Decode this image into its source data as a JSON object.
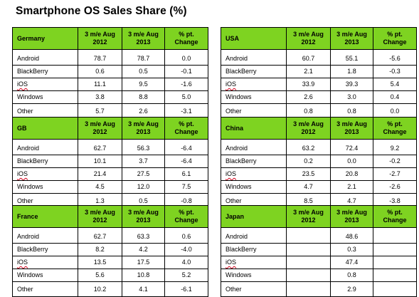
{
  "title": "Smartphone OS Sales Share (%)",
  "colors": {
    "header_bg": "#7ed321",
    "spell_underline": "#d0021b"
  },
  "tables": [
    {
      "region": "Germany",
      "headers": [
        "3 m/e Aug\n2012",
        "3 m/e Aug\n2013",
        "% pt.\nChange"
      ],
      "rows": [
        [
          "Android",
          "78.7",
          "78.7",
          "0.0"
        ],
        [
          "BlackBerry",
          "0.6",
          "0.5",
          "-0.1"
        ],
        [
          "iOS",
          "11.1",
          "9.5",
          "-1.6"
        ],
        [
          "Windows",
          "3.8",
          "8.8",
          "5.0"
        ],
        [
          "Other",
          "5.7",
          "2.6",
          "-3.1"
        ]
      ]
    },
    {
      "region": "USA",
      "headers": [
        "3 m/e Aug\n2012",
        "3 m/e Aug\n2013",
        "% pt.\nChange"
      ],
      "rows": [
        [
          "Android",
          "60.7",
          "55.1",
          "-5.6"
        ],
        [
          "BlackBerry",
          "2.1",
          "1.8",
          "-0.3"
        ],
        [
          "iOS",
          "33.9",
          "39.3",
          "5.4"
        ],
        [
          "Windows",
          "2.6",
          "3.0",
          "0.4"
        ],
        [
          "Other",
          "0.8",
          "0.8",
          "0.0"
        ]
      ]
    },
    {
      "region": "GB",
      "headers": [
        "3 m/e Aug\n2012",
        "3 m/e Aug\n2013",
        "% pt.\nChange"
      ],
      "rows": [
        [
          "Android",
          "62.7",
          "56.3",
          "-6.4"
        ],
        [
          "BlackBerry",
          "10.1",
          "3.7",
          "-6.4"
        ],
        [
          "iOS",
          "21.4",
          "27.5",
          "6.1"
        ],
        [
          "Windows",
          "4.5",
          "12.0",
          "7.5"
        ],
        [
          "Other",
          "1.3",
          "0.5",
          "-0.8"
        ]
      ]
    },
    {
      "region": "China",
      "headers": [
        "3 m/e Aug\n2012",
        "3 m/e Aug\n2013",
        "% pt.\nChange"
      ],
      "rows": [
        [
          "Android",
          "63.2",
          "72.4",
          "9.2"
        ],
        [
          "BlackBerry",
          "0.2",
          "0.0",
          "-0.2"
        ],
        [
          "iOS",
          "23.5",
          "20.8",
          "-2.7"
        ],
        [
          "Windows",
          "4.7",
          "2.1",
          "-2.6"
        ],
        [
          "Other",
          "8.5",
          "4.7",
          "-3.8"
        ]
      ]
    },
    {
      "region": "France",
      "headers": [
        "3 m/e Aug\n2012",
        "3 m/e Aug\n2013",
        "% pt.\nChange"
      ],
      "rows": [
        [
          "Android",
          "62.7",
          "63.3",
          "0.6"
        ],
        [
          "BlackBerry",
          "8.2",
          "4.2",
          "-4.0"
        ],
        [
          "iOS",
          "13.5",
          "17.5",
          "4.0"
        ],
        [
          "Windows",
          "5.6",
          "10.8",
          "5.2"
        ],
        [
          "Other",
          "10.2",
          "4.1",
          "-6.1"
        ]
      ]
    },
    {
      "region": "Japan",
      "headers": [
        "3 m/e Aug\n2012",
        "3 m/e Aug\n2013",
        "% pt.\nChange"
      ],
      "rows": [
        [
          "Android",
          "",
          "48.6",
          ""
        ],
        [
          "BlackBerry",
          "",
          "0.3",
          ""
        ],
        [
          "iOS",
          "",
          "47.4",
          ""
        ],
        [
          "Windows",
          "",
          "0.8",
          ""
        ],
        [
          "Other",
          "",
          "2.9",
          ""
        ]
      ]
    }
  ]
}
